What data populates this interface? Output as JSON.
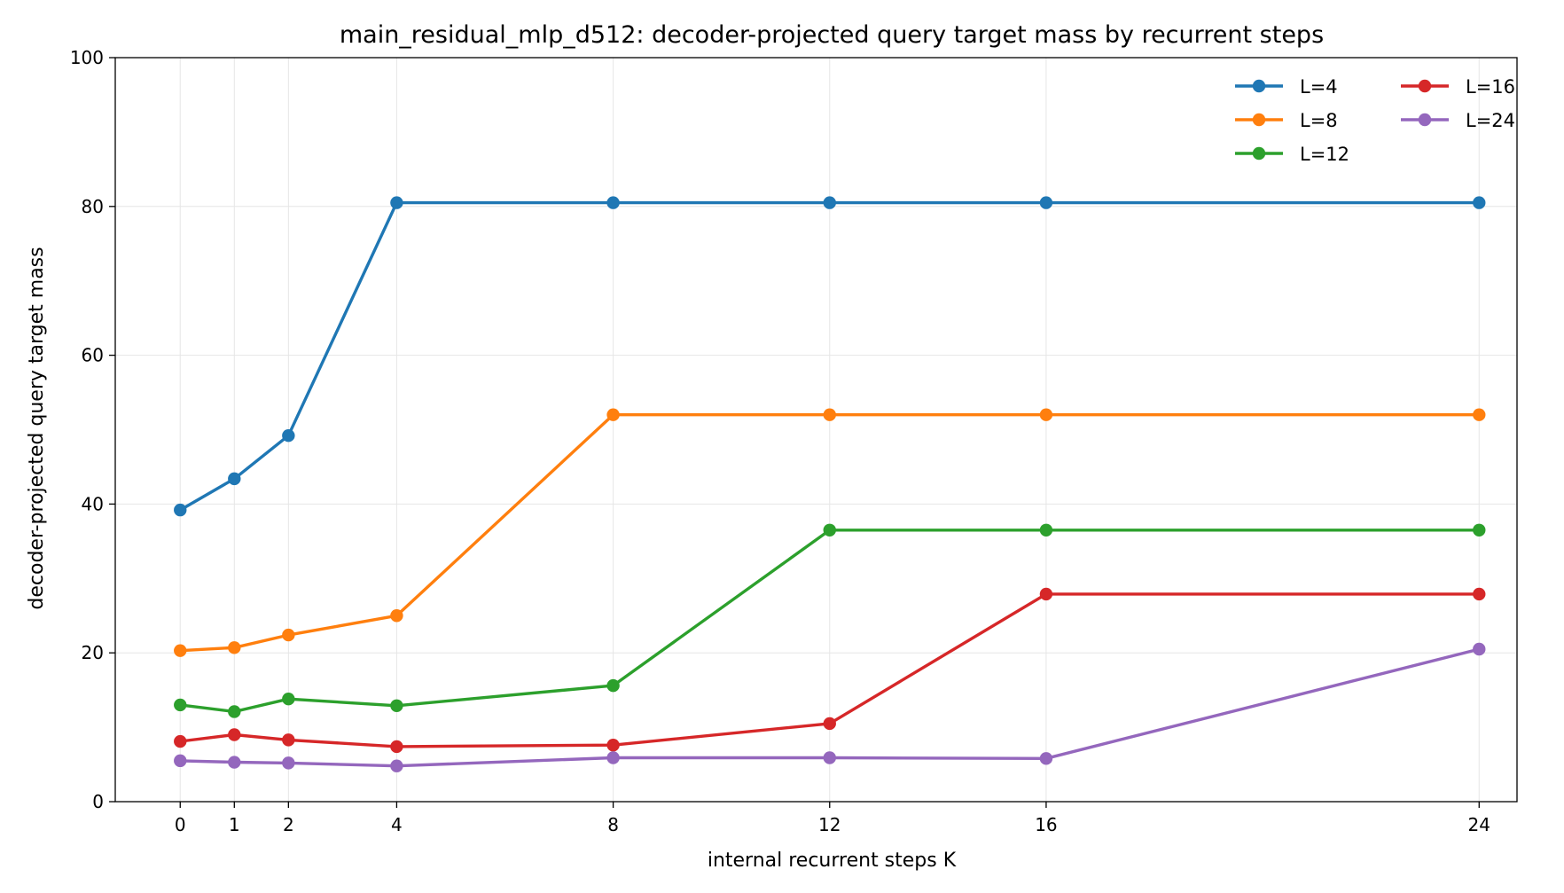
{
  "chart_data": {
    "type": "line",
    "title": "main_residual_mlp_d512: decoder-projected query target mass by recurrent steps",
    "xlabel": "internal recurrent steps K",
    "ylabel": "decoder-projected query target mass",
    "x": [
      0,
      1,
      2,
      4,
      8,
      12,
      16,
      24
    ],
    "xticks": [
      0,
      1,
      2,
      4,
      8,
      12,
      16,
      24
    ],
    "xlim": [
      -1.2,
      24.7
    ],
    "ylim": [
      0,
      100
    ],
    "yticks": [
      0,
      20,
      40,
      60,
      80,
      100
    ],
    "grid": true,
    "legend_position": "top-right",
    "series": [
      {
        "name": "L=4",
        "color": "#1f77b4",
        "values": [
          39.2,
          43.4,
          49.2,
          80.5,
          80.5,
          80.5,
          80.5,
          80.5
        ]
      },
      {
        "name": "L=8",
        "color": "#ff7f0e",
        "values": [
          20.3,
          20.7,
          22.4,
          25.0,
          52.0,
          52.0,
          52.0,
          52.0
        ]
      },
      {
        "name": "L=12",
        "color": "#2ca02c",
        "values": [
          13.0,
          12.1,
          13.8,
          12.9,
          15.6,
          36.5,
          36.5,
          36.5
        ]
      },
      {
        "name": "L=16",
        "color": "#d62728",
        "values": [
          8.1,
          9.0,
          8.3,
          7.4,
          7.6,
          10.5,
          27.9,
          27.9
        ]
      },
      {
        "name": "L=24",
        "color": "#9467bd",
        "values": [
          5.5,
          5.3,
          5.2,
          4.8,
          5.9,
          5.9,
          5.8,
          20.5
        ]
      }
    ]
  }
}
